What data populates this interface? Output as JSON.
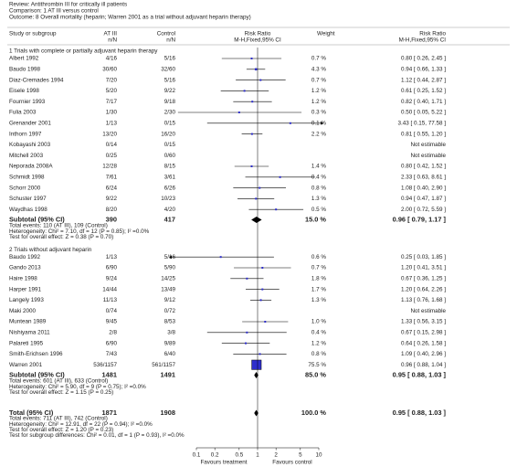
{
  "chart_data": {
    "type": "forest",
    "review": "Review:  Antithrombin III for critically ill patients",
    "comparison": "Comparison: 1 AT III versus control",
    "outcome": "Outcome: 8 Overall mortality (heparin; Warren 2001 as a trial without adjuvant heparin therapy)",
    "columns": {
      "study": "Study or subgroup",
      "at3": "AT III",
      "at3_sub": "n/N",
      "control": "Control",
      "control_sub": "n/N",
      "rr": "Risk Ratio",
      "rr_sub": "M-H,Fixed,95% CI",
      "weight": "Weight",
      "rr2": "Risk Ratio",
      "rr2_sub": "M-H,Fixed,95% CI"
    },
    "log_scale": true,
    "xlim": [
      0.1,
      10
    ],
    "xticks": [
      0.1,
      0.2,
      0.5,
      1,
      2,
      5,
      10
    ],
    "favours_left": "Favours treatment",
    "favours_right": "Favours control",
    "marker_color": "#2e2ecc",
    "diamond_color": "#000000",
    "groups": [
      {
        "label": "1 Trials with complete or partially adjuvant heparin therapy",
        "studies": [
          {
            "name": "Albert 1992",
            "at3": "4/16",
            "control": "5/16",
            "weight": 0.7,
            "weight_label": "0.7 %",
            "rr": 0.8,
            "lo": 0.26,
            "hi": 2.45,
            "rr_label": "0.80 [ 0.26, 2.45 ]"
          },
          {
            "name": "Baudo 1998",
            "at3": "30/60",
            "control": "32/60",
            "weight": 4.3,
            "weight_label": "4.3 %",
            "rr": 0.94,
            "lo": 0.66,
            "hi": 1.33,
            "rr_label": "0.94 [ 0.66, 1.33 ]"
          },
          {
            "name": "Diaz-Cremades 1994",
            "at3": "7/20",
            "control": "5/16",
            "weight": 0.7,
            "weight_label": "0.7 %",
            "rr": 1.12,
            "lo": 0.44,
            "hi": 2.87,
            "rr_label": "1.12 [ 0.44, 2.87 ]"
          },
          {
            "name": "Eisele 1998",
            "at3": "5/20",
            "control": "9/22",
            "weight": 1.2,
            "weight_label": "1.2 %",
            "rr": 0.61,
            "lo": 0.25,
            "hi": 1.52,
            "rr_label": "0.61 [ 0.25, 1.52 ]"
          },
          {
            "name": "Fournier 1993",
            "at3": "7/17",
            "control": "9/18",
            "weight": 1.2,
            "weight_label": "1.2 %",
            "rr": 0.82,
            "lo": 0.4,
            "hi": 1.71,
            "rr_label": "0.82 [ 0.40, 1.71 ]"
          },
          {
            "name": "Fulia 2003",
            "at3": "1/30",
            "control": "2/30",
            "weight": 0.3,
            "weight_label": "0.3 %",
            "rr": 0.5,
            "lo": 0.05,
            "hi": 5.22,
            "rr_label": "0.50 [ 0.05, 5.22 ]"
          },
          {
            "name": "Grenander 2001",
            "at3": "1/13",
            "control": "0/15",
            "weight": 0.1,
            "weight_label": "0.1 %",
            "rr": 3.43,
            "lo": 0.15,
            "hi": 77.58,
            "rr_label": "3.43 [ 0.15, 77.58 ]"
          },
          {
            "name": "Inthorn 1997",
            "at3": "13/20",
            "control": "16/20",
            "weight": 2.2,
            "weight_label": "2.2 %",
            "rr": 0.81,
            "lo": 0.55,
            "hi": 1.2,
            "rr_label": "0.81 [ 0.55, 1.20 ]"
          },
          {
            "name": "Kobayashi 2003",
            "at3": "0/14",
            "control": "0/15",
            "rr_label": "Not estimable"
          },
          {
            "name": "Mitchell 2003",
            "at3": "0/25",
            "control": "0/60",
            "rr_label": "Not estimable"
          },
          {
            "name": "Neporada 2008A",
            "at3": "12/28",
            "control": "8/15",
            "weight": 1.4,
            "weight_label": "1.4 %",
            "rr": 0.8,
            "lo": 0.42,
            "hi": 1.52,
            "rr_label": "0.80 [ 0.42, 1.52 ]"
          },
          {
            "name": "Schmidt 1998",
            "at3": "7/61",
            "control": "3/61",
            "weight": 0.4,
            "weight_label": "0.4 %",
            "rr": 2.33,
            "lo": 0.63,
            "hi": 8.61,
            "rr_label": "2.33 [ 0.63, 8.61 ]"
          },
          {
            "name": "Schorr 2000",
            "at3": "6/24",
            "control": "6/26",
            "weight": 0.8,
            "weight_label": "0.8 %",
            "rr": 1.08,
            "lo": 0.4,
            "hi": 2.9,
            "rr_label": "1.08 [ 0.40, 2.90 ]"
          },
          {
            "name": "Schuster 1997",
            "at3": "9/22",
            "control": "10/23",
            "weight": 1.3,
            "weight_label": "1.3 %",
            "rr": 0.94,
            "lo": 0.47,
            "hi": 1.87,
            "rr_label": "0.94 [ 0.47, 1.87 ]"
          },
          {
            "name": "Waydhas 1998",
            "at3": "8/20",
            "control": "4/20",
            "weight": 0.5,
            "weight_label": "0.5 %",
            "rr": 2.0,
            "lo": 0.72,
            "hi": 5.59,
            "rr_label": "2.00 [ 0.72, 5.59 ]"
          }
        ],
        "subtotal": {
          "name": "Subtotal (95% CI)",
          "at3": "390",
          "control": "417",
          "weight_label": "15.0 %",
          "rr": 0.96,
          "lo": 0.79,
          "hi": 1.17,
          "rr_label": "0.96 [ 0.79, 1.17 ]"
        },
        "notes": [
          "Total events: 110 (AT III), 109 (Control)",
          "Heterogeneity: Chi² = 7.10, df = 12 (P = 0.85); I² =0.0%",
          "Test for overall effect: Z = 0.38 (P = 0.70)"
        ]
      },
      {
        "label": "2 Trials without adjuvant heparin",
        "studies": [
          {
            "name": "Baudo 1992",
            "at3": "1/13",
            "control": "5/16",
            "weight": 0.6,
            "weight_label": "0.6 %",
            "rr": 0.25,
            "lo": 0.03,
            "hi": 1.85,
            "rr_label": "0.25 [ 0.03, 1.85 ]"
          },
          {
            "name": "Gando 2013",
            "at3": "6/90",
            "control": "5/90",
            "weight": 0.7,
            "weight_label": "0.7 %",
            "rr": 1.2,
            "lo": 0.41,
            "hi": 3.51,
            "rr_label": "1.20 [ 0.41, 3.51 ]"
          },
          {
            "name": "Haire 1998",
            "at3": "9/24",
            "control": "14/25",
            "weight": 1.8,
            "weight_label": "1.8 %",
            "rr": 0.67,
            "lo": 0.36,
            "hi": 1.25,
            "rr_label": "0.67 [ 0.36, 1.25 ]"
          },
          {
            "name": "Harper 1991",
            "at3": "14/44",
            "control": "13/49",
            "weight": 1.7,
            "weight_label": "1.7 %",
            "rr": 1.2,
            "lo": 0.64,
            "hi": 2.26,
            "rr_label": "1.20 [ 0.64, 2.26 ]"
          },
          {
            "name": "Langely 1993",
            "at3": "11/13",
            "control": "9/12",
            "weight": 1.3,
            "weight_label": "1.3 %",
            "rr": 1.13,
            "lo": 0.76,
            "hi": 1.68,
            "rr_label": "1.13 [ 0.76, 1.68 ]"
          },
          {
            "name": "Maki 2000",
            "at3": "0/74",
            "control": "0/72",
            "rr_label": "Not estimable"
          },
          {
            "name": "Muntean 1989",
            "at3": "9/45",
            "control": "8/53",
            "weight": 1.0,
            "weight_label": "1.0 %",
            "rr": 1.33,
            "lo": 0.56,
            "hi": 3.15,
            "rr_label": "1.33 [ 0.56, 3.15 ]"
          },
          {
            "name": "Nishiyama 2011",
            "at3": "2/8",
            "control": "3/8",
            "weight": 0.4,
            "weight_label": "0.4 %",
            "rr": 0.67,
            "lo": 0.15,
            "hi": 2.98,
            "rr_label": "0.67 [ 0.15, 2.98 ]"
          },
          {
            "name": "Palareti 1995",
            "at3": "6/90",
            "control": "9/89",
            "weight": 1.2,
            "weight_label": "1.2 %",
            "rr": 0.64,
            "lo": 0.26,
            "hi": 1.58,
            "rr_label": "0.64 [ 0.26, 1.58 ]"
          },
          {
            "name": "Smith-Erichsen 1996",
            "at3": "7/43",
            "control": "6/40",
            "weight": 0.8,
            "weight_label": "0.8 %",
            "rr": 1.09,
            "lo": 0.4,
            "hi": 2.96,
            "rr_label": "1.09 [ 0.40, 2.96 ]"
          },
          {
            "name": "Warren 2001",
            "at3": "536/1157",
            "control": "561/1157",
            "weight": 75.5,
            "weight_label": "75.5 %",
            "rr": 0.96,
            "lo": 0.88,
            "hi": 1.04,
            "rr_label": "0.96 [ 0.88, 1.04 ]"
          }
        ],
        "subtotal": {
          "name": "Subtotal (95% CI)",
          "at3": "1481",
          "control": "1491",
          "weight_label": "85.0 %",
          "rr": 0.95,
          "lo": 0.88,
          "hi": 1.03,
          "rr_label": "0.95 [ 0.88, 1.03 ]"
        },
        "notes": [
          "Total events: 601 (AT III), 633 (Control)",
          "Heterogeneity: Chi² = 5.90, df = 9 (P = 0.75); I² =0.0%",
          "Test for overall effect: Z = 1.15 (P = 0.25)"
        ]
      }
    ],
    "total": {
      "name": "Total (95% CI)",
      "at3": "1871",
      "control": "1908",
      "weight_label": "100.0 %",
      "rr": 0.95,
      "lo": 0.88,
      "hi": 1.03,
      "rr_label": "0.95 [ 0.88, 1.03 ]"
    },
    "total_notes": [
      "Total events: 711 (AT III), 742 (Control)",
      "Heterogeneity: Chi² = 12.91, df = 22 (P = 0.94); I² =0.0%",
      "Test for overall effect: Z = 1.20 (P = 0.23)",
      "Test for subgroup differences: Chi² = 0.01, df = 1 (P = 0.93), I² =0.0%"
    ]
  }
}
